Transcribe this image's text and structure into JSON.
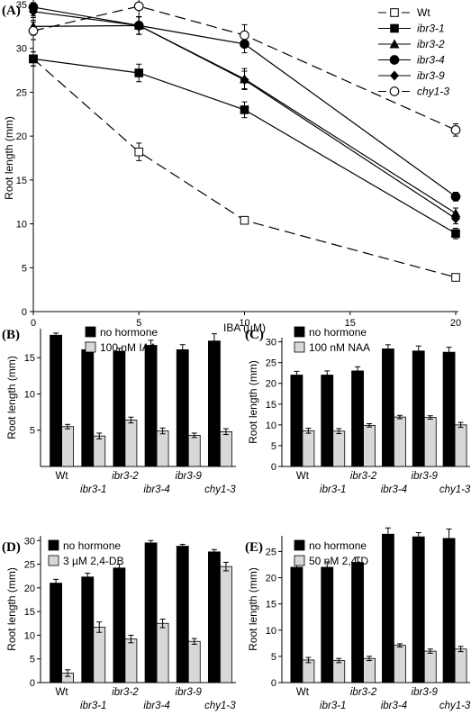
{
  "chart_data": [
    {
      "type": "line",
      "panel": "(A)",
      "xlabel": "IBA (µM)",
      "ylabel": "Root length (mm)",
      "xlim": [
        0,
        20
      ],
      "ylim": [
        0,
        35
      ],
      "xticks": [
        "0",
        "5",
        "10",
        "15",
        "20"
      ],
      "yticks": [
        "0",
        "5",
        "10",
        "15",
        "20",
        "25",
        "30",
        "35"
      ],
      "legend_position": "top-right",
      "x": [
        0,
        5,
        10,
        20
      ],
      "series": [
        {
          "name": "Wt",
          "values": [
            28.8,
            18.2,
            10.4,
            3.9
          ],
          "err": [
            0.8,
            1.0,
            0.4,
            0.3
          ],
          "marker": "open-square",
          "dashed": true
        },
        {
          "name": "ibr3-1",
          "values": [
            28.8,
            27.2,
            23.0,
            8.9
          ],
          "err": [
            0.8,
            1.0,
            0.9,
            0.6
          ],
          "marker": "filled-square",
          "dashed": false
        },
        {
          "name": "ibr3-2",
          "values": [
            32.5,
            32.6,
            26.5,
            11.2
          ],
          "err": [
            1.0,
            1.0,
            1.2,
            0.6
          ],
          "marker": "filled-triangle",
          "dashed": false
        },
        {
          "name": "ibr3-4",
          "values": [
            34.7,
            32.6,
            30.5,
            13.1
          ],
          "err": [
            1.0,
            1.0,
            1.0,
            0.5
          ],
          "marker": "filled-circle",
          "dashed": false
        },
        {
          "name": "ibr3-9",
          "values": [
            34.2,
            32.6,
            26.4,
            10.6
          ],
          "err": [
            1.0,
            1.0,
            1.0,
            0.6
          ],
          "marker": "filled-diamond",
          "dashed": false
        },
        {
          "name": "chy1-3",
          "values": [
            32.0,
            34.8,
            31.5,
            20.7
          ],
          "err": [
            1.0,
            1.2,
            1.2,
            0.7
          ],
          "marker": "open-circle",
          "dashed": true
        }
      ]
    },
    {
      "type": "bar",
      "panel": "(B)",
      "ylabel": "Root length (mm)",
      "ylim": [
        0,
        19
      ],
      "yticks": [
        "5",
        "10",
        "15"
      ],
      "legend_position": "top",
      "categories": [
        "Wt",
        "ibr3-1",
        "ibr3-2",
        "ibr3-4",
        "ibr3-9",
        "chy1-3"
      ],
      "series": [
        {
          "name": "no hormone",
          "values": [
            18.1,
            16.1,
            15.9,
            16.7,
            16.1,
            17.3
          ],
          "err": [
            0.3,
            1.0,
            0.4,
            0.7,
            0.7,
            1.0
          ],
          "color": "#000000"
        },
        {
          "name": "100 nM IAA",
          "values": [
            5.5,
            4.2,
            6.4,
            4.9,
            4.3,
            4.8
          ],
          "err": [
            0.3,
            0.4,
            0.4,
            0.4,
            0.3,
            0.4
          ],
          "color": "#d8d8d8"
        }
      ]
    },
    {
      "type": "bar",
      "panel": "(C)",
      "ylabel": "Root length (mm)",
      "ylim": [
        0,
        31
      ],
      "yticks": [
        "0",
        "5",
        "10",
        "15",
        "20",
        "25",
        "30"
      ],
      "legend_position": "top",
      "categories": [
        "Wt",
        "ibr3-1",
        "ibr3-2",
        "ibr3-4",
        "ibr3-9",
        "chy1-3"
      ],
      "series": [
        {
          "name": "no hormone",
          "values": [
            22.0,
            22.0,
            23.0,
            28.3,
            27.8,
            27.5
          ],
          "err": [
            0.9,
            1.0,
            1.0,
            1.0,
            1.2,
            1.2
          ],
          "color": "#000000"
        },
        {
          "name": "100 nM NAA",
          "values": [
            8.6,
            8.5,
            9.9,
            11.9,
            11.8,
            10.0
          ],
          "err": [
            0.6,
            0.6,
            0.4,
            0.4,
            0.4,
            0.6
          ],
          "color": "#d8d8d8"
        }
      ]
    },
    {
      "type": "bar",
      "panel": "(D)",
      "ylabel": "Root length (mm)",
      "ylim": [
        0,
        31
      ],
      "yticks": [
        "0",
        "5",
        "10",
        "15",
        "20",
        "25",
        "30"
      ],
      "legend_position": "top",
      "categories": [
        "Wt",
        "ibr3-1",
        "ibr3-2",
        "ibr3-4",
        "ibr3-9",
        "chy1-3"
      ],
      "series": [
        {
          "name": "no hormone",
          "values": [
            21.0,
            22.3,
            24.2,
            29.5,
            28.8,
            27.6
          ],
          "err": [
            0.8,
            0.8,
            0.8,
            0.5,
            0.4,
            0.5
          ],
          "color": "#000000"
        },
        {
          "name": "3 µM 2,4-DB",
          "values": [
            2.0,
            11.7,
            9.2,
            12.5,
            8.7,
            24.5
          ],
          "err": [
            0.7,
            1.1,
            0.8,
            0.9,
            0.6,
            0.9
          ],
          "color": "#d8d8d8"
        }
      ]
    },
    {
      "type": "bar",
      "panel": "(E)",
      "ylabel": "Root length (mm)",
      "ylim": [
        0,
        28
      ],
      "yticks": [
        "0",
        "5",
        "10",
        "15",
        "20",
        "25"
      ],
      "legend_position": "top",
      "categories": [
        "Wt",
        "ibr3-1",
        "ibr3-2",
        "ibr3-4",
        "ibr3-9",
        "chy1-3"
      ],
      "series": [
        {
          "name": "no hormone",
          "values": [
            22.0,
            22.0,
            22.9,
            28.3,
            27.8,
            27.5
          ],
          "err": [
            1.0,
            1.0,
            1.0,
            1.2,
            0.8,
            1.8
          ],
          "color": "#000000"
        },
        {
          "name": "50 nM 2,4-D",
          "values": [
            4.3,
            4.2,
            4.6,
            7.1,
            6.0,
            6.4
          ],
          "err": [
            0.5,
            0.4,
            0.4,
            0.3,
            0.4,
            0.5
          ],
          "color": "#d8d8d8"
        }
      ]
    }
  ]
}
